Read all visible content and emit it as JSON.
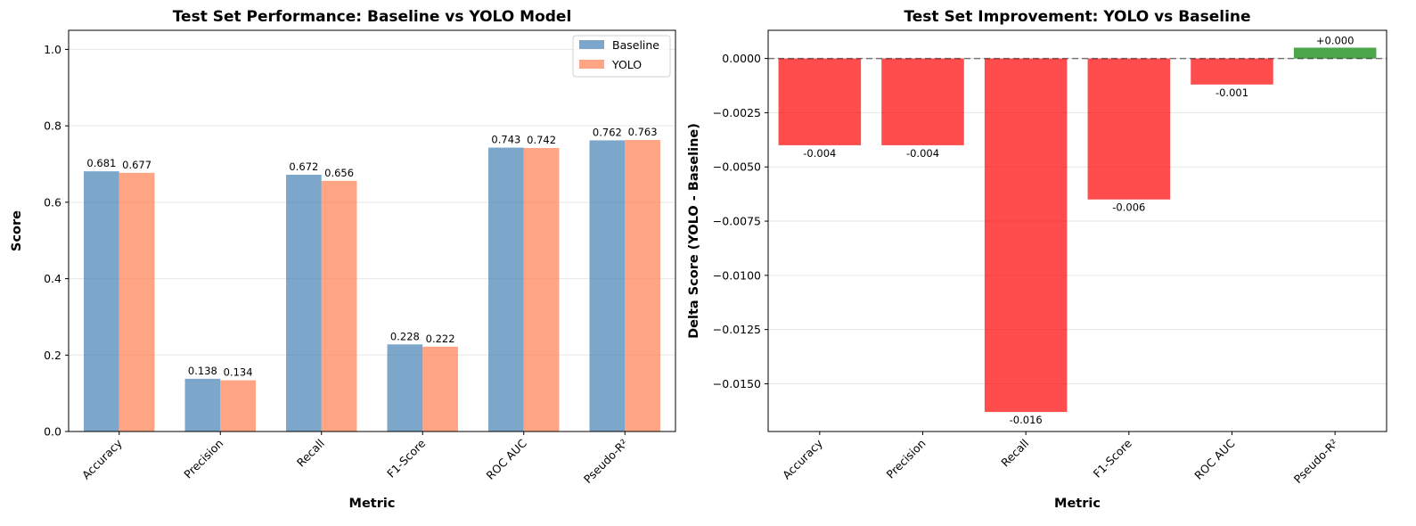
{
  "colors": {
    "baseline": "#4682b4",
    "yolo": "#ff7f50",
    "negative": "#ff0000",
    "positive": "#008000"
  },
  "chart_data": [
    {
      "type": "bar",
      "title": "Test Set Performance: Baseline vs YOLO Model",
      "xlabel": "Metric",
      "ylabel": "Score",
      "categories": [
        "Accuracy",
        "Precision",
        "Recall",
        "F1-Score",
        "ROC AUC",
        "Pseudo-R²"
      ],
      "series": [
        {
          "name": "Baseline",
          "values": [
            0.681,
            0.138,
            0.672,
            0.228,
            0.743,
            0.762
          ],
          "labels": [
            "0.681",
            "0.138",
            "0.672",
            "0.228",
            "0.743",
            "0.762"
          ]
        },
        {
          "name": "YOLO",
          "values": [
            0.677,
            0.134,
            0.656,
            0.222,
            0.742,
            0.763
          ],
          "labels": [
            "0.677",
            "0.134",
            "0.656",
            "0.222",
            "0.742",
            "0.763"
          ]
        }
      ],
      "ylim": [
        0,
        1.05
      ],
      "yticks": [
        0.0,
        0.2,
        0.4,
        0.6,
        0.8,
        1.0
      ],
      "ytick_labels": [
        "0.0",
        "0.2",
        "0.4",
        "0.6",
        "0.8",
        "1.0"
      ],
      "grid": "y",
      "legend": "top-right"
    },
    {
      "type": "bar",
      "title": "Test Set Improvement: YOLO vs Baseline",
      "xlabel": "Metric",
      "ylabel": "Delta Score (YOLO - Baseline)",
      "categories": [
        "Accuracy",
        "Precision",
        "Recall",
        "F1-Score",
        "ROC AUC",
        "Pseudo-R²"
      ],
      "values": [
        -0.004,
        -0.004,
        -0.0163,
        -0.0065,
        -0.0012,
        0.0005
      ],
      "labels": [
        "-0.004",
        "-0.004",
        "-0.016",
        "-0.006",
        "-0.001",
        "+0.000"
      ],
      "ylim": [
        -0.0172,
        0.0013
      ],
      "yticks": [
        0.0,
        -0.0025,
        -0.005,
        -0.0075,
        -0.01,
        -0.0125,
        -0.015
      ],
      "ytick_labels": [
        "0.0000",
        "−0.0025",
        "−0.0050",
        "−0.0075",
        "−0.0100",
        "−0.0125",
        "−0.0150"
      ],
      "reference_line": 0,
      "grid": "y"
    }
  ]
}
